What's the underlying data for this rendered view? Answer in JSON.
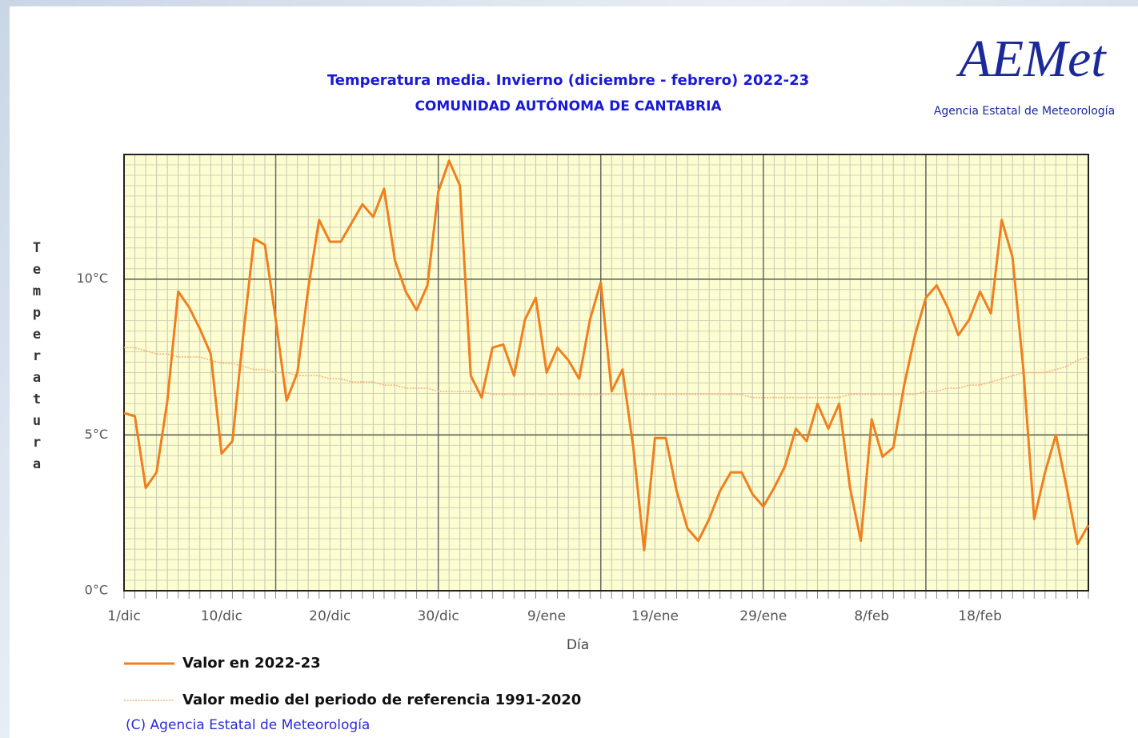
{
  "chart_data": {
    "type": "line",
    "title": "Temperatura media. Invierno (diciembre - febrero) 2022-23",
    "subtitle": "COMUNIDAD AUTÓNOMA DE CANTABRIA",
    "x_label": "Día",
    "y_label": "Temperatura",
    "categories": [
      "1/dic",
      null,
      null,
      null,
      null,
      null,
      null,
      null,
      null,
      "10/dic",
      null,
      null,
      null,
      null,
      null,
      null,
      null,
      null,
      null,
      "20/dic",
      null,
      null,
      null,
      null,
      null,
      null,
      null,
      null,
      null,
      "30/dic",
      null,
      null,
      null,
      null,
      null,
      null,
      null,
      null,
      null,
      "9/ene",
      null,
      null,
      null,
      null,
      null,
      null,
      null,
      null,
      null,
      "19/ene",
      null,
      null,
      null,
      null,
      null,
      null,
      null,
      null,
      null,
      "29/ene",
      null,
      null,
      null,
      null,
      null,
      null,
      null,
      null,
      null,
      "8/feb",
      null,
      null,
      null,
      null,
      null,
      null,
      null,
      null,
      null,
      "18/feb",
      null,
      null,
      null,
      null,
      null,
      null,
      null,
      null,
      null,
      null
    ],
    "series": [
      {
        "name": "Valor en 2022-23",
        "color": "#f07f1e",
        "style": "solid",
        "values": [
          5.7,
          5.6,
          3.3,
          3.8,
          6.1,
          9.6,
          9.1,
          8.4,
          7.6,
          4.4,
          4.8,
          8.2,
          11.3,
          11.1,
          8.7,
          6.1,
          7.0,
          9.7,
          11.9,
          11.2,
          11.2,
          11.8,
          12.4,
          12.0,
          12.9,
          10.6,
          9.6,
          9.0,
          9.8,
          12.8,
          13.8,
          13.0,
          6.9,
          6.2,
          7.8,
          7.9,
          6.9,
          8.7,
          9.4,
          7.0,
          7.8,
          7.4,
          6.8,
          8.7,
          9.9,
          6.4,
          7.1,
          4.6,
          1.3,
          4.9,
          4.9,
          3.2,
          2.0,
          1.6,
          2.3,
          3.2,
          3.8,
          3.8,
          3.1,
          2.7,
          3.3,
          4.0,
          5.2,
          4.8,
          6.0,
          5.2,
          6.0,
          3.3,
          1.6,
          5.5,
          4.3,
          4.6,
          6.6,
          8.2,
          9.4,
          9.8,
          9.1,
          8.2,
          8.7,
          9.6,
          8.9,
          11.9,
          10.7,
          7.1,
          2.3,
          3.8,
          5.0,
          3.3,
          1.5,
          2.1
        ]
      },
      {
        "name": "Valor medio del periodo de referencia 1991-2020",
        "color": "#f5b07a",
        "style": "dotted",
        "values": [
          7.8,
          7.8,
          7.7,
          7.6,
          7.6,
          7.5,
          7.5,
          7.5,
          7.4,
          7.3,
          7.3,
          7.2,
          7.1,
          7.1,
          7.0,
          7.0,
          6.9,
          6.9,
          6.9,
          6.8,
          6.8,
          6.7,
          6.7,
          6.7,
          6.6,
          6.6,
          6.5,
          6.5,
          6.5,
          6.4,
          6.4,
          6.4,
          6.4,
          6.4,
          6.3,
          6.3,
          6.3,
          6.3,
          6.3,
          6.3,
          6.3,
          6.3,
          6.3,
          6.3,
          6.3,
          6.3,
          6.3,
          6.3,
          6.3,
          6.3,
          6.3,
          6.3,
          6.3,
          6.3,
          6.3,
          6.3,
          6.3,
          6.3,
          6.2,
          6.2,
          6.2,
          6.2,
          6.2,
          6.2,
          6.2,
          6.2,
          6.2,
          6.3,
          6.3,
          6.3,
          6.3,
          6.3,
          6.3,
          6.3,
          6.4,
          6.4,
          6.5,
          6.5,
          6.6,
          6.6,
          6.7,
          6.8,
          6.9,
          7.0,
          7.0,
          7.0,
          7.1,
          7.2,
          7.4,
          7.5
        ]
      }
    ],
    "ylim": [
      0,
      14
    ],
    "yticks": [
      {
        "value": 0,
        "label": "0°C"
      },
      {
        "value": 5,
        "label": "5°C"
      },
      {
        "value": 10,
        "label": "10°C"
      }
    ],
    "grid": true,
    "legend": "bottom-left",
    "plot_background": "#fdfdd2"
  },
  "logo": {
    "text": "AEMet",
    "subtitle": "Agencia Estatal de Meteorología"
  },
  "copyright": "(C) Agencia Estatal de Meteorología"
}
